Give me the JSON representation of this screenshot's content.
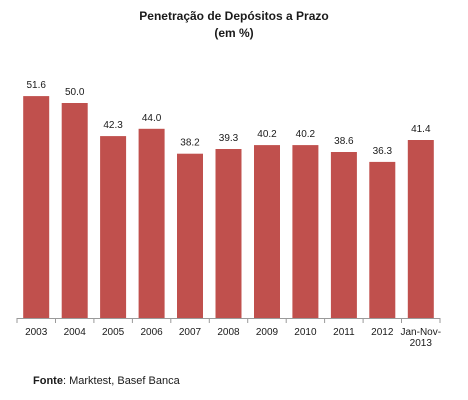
{
  "chart_data": {
    "type": "bar",
    "title": [
      "Penetração de Depósitos a Prazo",
      "(em %)"
    ],
    "categories": [
      "2003",
      "2004",
      "2005",
      "2006",
      "2007",
      "2008",
      "2009",
      "2010",
      "2011",
      "2012",
      "Jan-Nov-2013"
    ],
    "category_lines": [
      [
        "2003"
      ],
      [
        "2004"
      ],
      [
        "2005"
      ],
      [
        "2006"
      ],
      [
        "2007"
      ],
      [
        "2008"
      ],
      [
        "2009"
      ],
      [
        "2010"
      ],
      [
        "2011"
      ],
      [
        "2012"
      ],
      [
        "Jan-Nov-",
        "2013"
      ]
    ],
    "values": [
      51.6,
      50.0,
      42.3,
      44.0,
      38.2,
      39.3,
      40.2,
      40.2,
      38.6,
      36.3,
      41.4
    ],
    "value_labels": [
      "51.6",
      "50.0",
      "42.3",
      "44.0",
      "38.2",
      "39.3",
      "40.2",
      "40.2",
      "38.6",
      "36.3",
      "41.4"
    ],
    "ylim": [
      0,
      60
    ],
    "bar_color": "#c0504d",
    "axis_color": "#9a9a9a",
    "grid": false,
    "legend": false,
    "xlabel": "",
    "ylabel": ""
  },
  "source": {
    "label": "Fonte",
    "text": ": Marktest, Basef Banca"
  }
}
